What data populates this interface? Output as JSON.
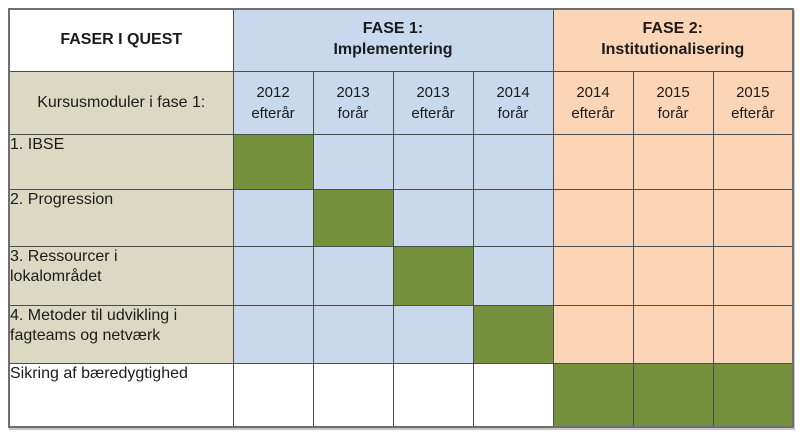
{
  "colors": {
    "phase1_fill": "#c8d9ed",
    "phase2_fill": "#fbd5b5",
    "active_fill": "#76913d",
    "label_fill": "#dcd9c3",
    "blank_fill": "#ffffff",
    "grid_line": "#4d4d4d",
    "text": "#1b1b1b"
  },
  "chart_data": {
    "type": "table",
    "title": "FASER I QUEST",
    "phase_headers": [
      {
        "name": "FASE 1:",
        "subtitle": "Implementering",
        "columns": 4,
        "fill": "p1"
      },
      {
        "name": "FASE 2:",
        "subtitle": "Institutionalisering",
        "columns": 3,
        "fill": "p2"
      }
    ],
    "row_header": "Kursusmoduler  i fase 1:",
    "columns": [
      {
        "year": "2012",
        "season": "efterår",
        "phase": 1
      },
      {
        "year": "2013",
        "season": "forår",
        "phase": 1
      },
      {
        "year": "2013",
        "season": "efterår",
        "phase": 1
      },
      {
        "year": "2014",
        "season": "forår",
        "phase": 1
      },
      {
        "year": "2014",
        "season": "efterår",
        "phase": 2
      },
      {
        "year": "2015",
        "season": "forår",
        "phase": 2
      },
      {
        "year": "2015",
        "season": "efterår",
        "phase": 2
      }
    ],
    "rows": [
      {
        "label": "1. IBSE",
        "label_fill": "label",
        "cells": [
          "active",
          "p1",
          "p1",
          "p1",
          "p2",
          "p2",
          "p2"
        ],
        "active_periods": [
          "2012 efterår"
        ]
      },
      {
        "label": "2. Progression",
        "label_fill": "label",
        "cells": [
          "p1",
          "active",
          "p1",
          "p1",
          "p2",
          "p2",
          "p2"
        ],
        "active_periods": [
          "2013 forår"
        ]
      },
      {
        "label": "3. Ressourcer i\nlokalområdet",
        "label_fill": "label",
        "cells": [
          "p1",
          "p1",
          "active",
          "p1",
          "p2",
          "p2",
          "p2"
        ],
        "active_periods": [
          "2013 efterår"
        ]
      },
      {
        "label": "4. Metoder til udvikling i\nfagteams og netværk",
        "label_fill": "label",
        "cells": [
          "p1",
          "p1",
          "p1",
          "active",
          "p2",
          "p2",
          "p2"
        ],
        "active_periods": [
          "2014 forår"
        ]
      },
      {
        "label": "Sikring af bæredygtighed",
        "label_fill": "blank",
        "cells": [
          "blank",
          "blank",
          "blank",
          "blank",
          "active",
          "active",
          "active"
        ],
        "active_periods": [
          "2014 efterår",
          "2015 forår",
          "2015 efterår"
        ]
      }
    ]
  }
}
